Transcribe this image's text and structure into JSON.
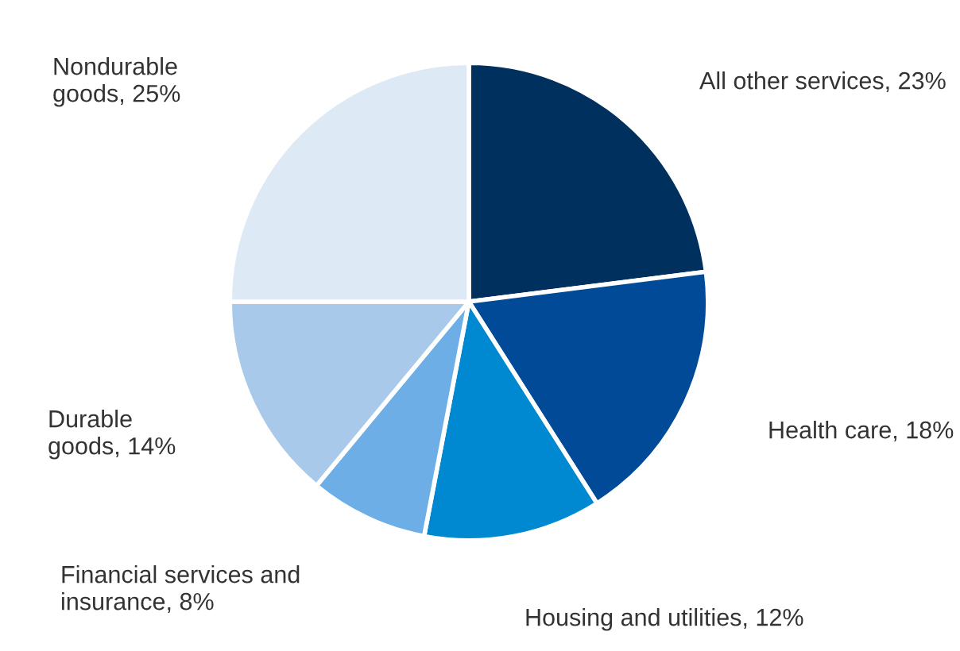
{
  "chart_data": {
    "type": "pie",
    "categories": [
      "All other services",
      "Health care",
      "Housing and utilities",
      "Financial services and insurance",
      "Durable goods",
      "Nondurable goods"
    ],
    "values": [
      23,
      18,
      12,
      8,
      14,
      25
    ],
    "value_labels": [
      "23%",
      "18%",
      "12%",
      "8%",
      "14%",
      "25%"
    ],
    "colors": [
      "#00305e",
      "#004a98",
      "#0088d1",
      "#6daee6",
      "#a9c9ea",
      "#dee9f6"
    ]
  }
}
